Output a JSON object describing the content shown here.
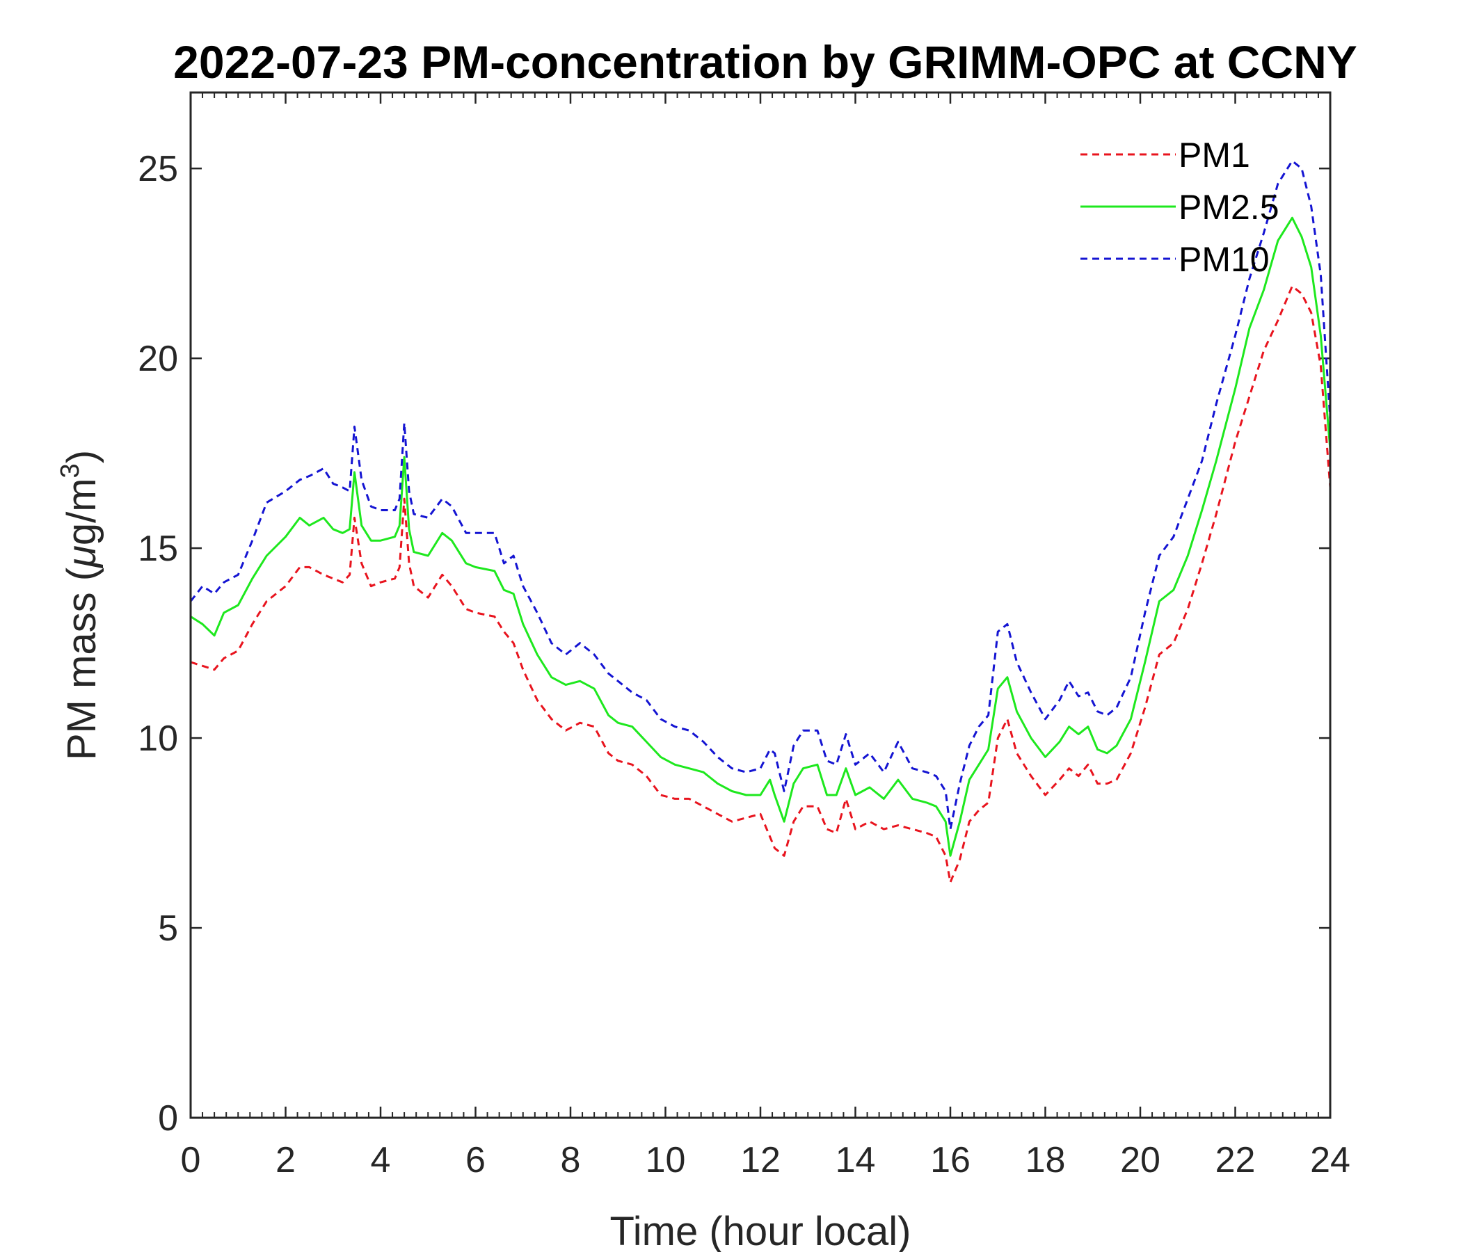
{
  "chart_data": {
    "type": "line",
    "title": "2022-07-23 PM-concentration by GRIMM-OPC at CCNY",
    "xlabel": "Time (hour local)",
    "ylabel_prefix": "PM mass (",
    "ylabel_mu": "μ",
    "ylabel_unit": "g/m",
    "ylabel_sup": "3",
    "ylabel_suffix": ")",
    "xlim": [
      0,
      24
    ],
    "ylim": [
      0,
      27
    ],
    "xticks": [
      "0",
      "2",
      "4",
      "6",
      "8",
      "10",
      "12",
      "14",
      "16",
      "18",
      "20",
      "22",
      "24"
    ],
    "yticks": [
      "0",
      "5",
      "10",
      "15",
      "20",
      "25"
    ],
    "legend_position": "top-right",
    "series": [
      {
        "name": "PM1",
        "color": "#e8141e",
        "style": "dashed",
        "x": [
          0,
          0.25,
          0.5,
          0.7,
          1.0,
          1.3,
          1.6,
          2.0,
          2.3,
          2.5,
          2.8,
          3.0,
          3.2,
          3.35,
          3.45,
          3.6,
          3.8,
          4.0,
          4.3,
          4.4,
          4.5,
          4.6,
          4.7,
          5.0,
          5.3,
          5.5,
          5.8,
          6.0,
          6.4,
          6.6,
          6.8,
          7.0,
          7.3,
          7.6,
          7.9,
          8.2,
          8.5,
          8.8,
          9.0,
          9.3,
          9.6,
          9.9,
          10.2,
          10.5,
          10.8,
          11.1,
          11.4,
          11.7,
          12.0,
          12.2,
          12.3,
          12.5,
          12.7,
          12.9,
          13.2,
          13.4,
          13.6,
          13.8,
          14.0,
          14.3,
          14.6,
          14.9,
          15.2,
          15.5,
          15.7,
          15.9,
          16.0,
          16.2,
          16.4,
          16.6,
          16.8,
          17.0,
          17.2,
          17.4,
          17.7,
          18.0,
          18.3,
          18.5,
          18.7,
          18.9,
          19.1,
          19.3,
          19.5,
          19.8,
          20.1,
          20.4,
          20.7,
          21.0,
          21.3,
          21.6,
          22.0,
          22.3,
          22.6,
          22.9,
          23.2,
          23.4,
          23.6,
          23.8,
          24.0
        ],
        "y": [
          12.0,
          11.9,
          11.8,
          12.1,
          12.3,
          13.0,
          13.6,
          14.0,
          14.5,
          14.5,
          14.3,
          14.2,
          14.1,
          14.3,
          15.8,
          14.6,
          14.0,
          14.1,
          14.2,
          14.5,
          16.3,
          14.6,
          14.0,
          13.7,
          14.3,
          14.0,
          13.4,
          13.3,
          13.2,
          12.8,
          12.5,
          11.8,
          11.0,
          10.5,
          10.2,
          10.4,
          10.3,
          9.6,
          9.4,
          9.3,
          9.0,
          8.5,
          8.4,
          8.4,
          8.2,
          8.0,
          7.8,
          7.9,
          8.0,
          7.4,
          7.1,
          6.9,
          7.8,
          8.2,
          8.2,
          7.6,
          7.5,
          8.4,
          7.6,
          7.8,
          7.6,
          7.7,
          7.6,
          7.5,
          7.4,
          6.9,
          6.2,
          6.8,
          7.8,
          8.1,
          8.3,
          10.0,
          10.5,
          9.6,
          9.0,
          8.5,
          8.9,
          9.2,
          9.0,
          9.3,
          8.8,
          8.8,
          8.9,
          9.6,
          10.8,
          12.2,
          12.5,
          13.4,
          14.6,
          15.9,
          17.8,
          19.0,
          20.2,
          21.0,
          21.9,
          21.7,
          21.2,
          19.8,
          16.6
        ]
      },
      {
        "name": "PM2.5",
        "color": "#1ee81e",
        "style": "solid",
        "x": [
          0,
          0.25,
          0.5,
          0.7,
          1.0,
          1.3,
          1.6,
          2.0,
          2.3,
          2.5,
          2.8,
          3.0,
          3.2,
          3.35,
          3.45,
          3.6,
          3.8,
          4.0,
          4.3,
          4.4,
          4.5,
          4.6,
          4.7,
          5.0,
          5.3,
          5.5,
          5.8,
          6.0,
          6.4,
          6.6,
          6.8,
          7.0,
          7.3,
          7.6,
          7.9,
          8.2,
          8.5,
          8.8,
          9.0,
          9.3,
          9.6,
          9.9,
          10.2,
          10.5,
          10.8,
          11.1,
          11.4,
          11.7,
          12.0,
          12.2,
          12.3,
          12.5,
          12.7,
          12.9,
          13.2,
          13.4,
          13.6,
          13.8,
          14.0,
          14.3,
          14.6,
          14.9,
          15.2,
          15.5,
          15.7,
          15.9,
          16.0,
          16.2,
          16.4,
          16.6,
          16.8,
          17.0,
          17.2,
          17.4,
          17.7,
          18.0,
          18.3,
          18.5,
          18.7,
          18.9,
          19.1,
          19.3,
          19.5,
          19.8,
          20.1,
          20.4,
          20.7,
          21.0,
          21.3,
          21.6,
          22.0,
          22.3,
          22.6,
          22.9,
          23.2,
          23.4,
          23.6,
          23.8,
          24.0
        ],
        "y": [
          13.2,
          13.0,
          12.7,
          13.3,
          13.5,
          14.2,
          14.8,
          15.3,
          15.8,
          15.6,
          15.8,
          15.5,
          15.4,
          15.5,
          17.0,
          15.6,
          15.2,
          15.2,
          15.3,
          15.6,
          17.4,
          15.5,
          14.9,
          14.8,
          15.4,
          15.2,
          14.6,
          14.5,
          14.4,
          13.9,
          13.8,
          13.0,
          12.2,
          11.6,
          11.4,
          11.5,
          11.3,
          10.6,
          10.4,
          10.3,
          9.9,
          9.5,
          9.3,
          9.2,
          9.1,
          8.8,
          8.6,
          8.5,
          8.5,
          8.9,
          8.5,
          7.8,
          8.8,
          9.2,
          9.3,
          8.5,
          8.5,
          9.2,
          8.5,
          8.7,
          8.4,
          8.9,
          8.4,
          8.3,
          8.2,
          7.8,
          6.9,
          7.8,
          8.9,
          9.3,
          9.7,
          11.3,
          11.6,
          10.7,
          10.0,
          9.5,
          9.9,
          10.3,
          10.1,
          10.3,
          9.7,
          9.6,
          9.8,
          10.5,
          12.0,
          13.6,
          13.9,
          14.8,
          16.0,
          17.3,
          19.2,
          20.8,
          21.8,
          23.1,
          23.7,
          23.2,
          22.4,
          20.6,
          17.6
        ]
      },
      {
        "name": "PM10",
        "color": "#1414d2",
        "style": "dashed",
        "x": [
          0,
          0.25,
          0.5,
          0.7,
          1.0,
          1.3,
          1.6,
          2.0,
          2.3,
          2.5,
          2.8,
          3.0,
          3.2,
          3.35,
          3.45,
          3.6,
          3.8,
          4.0,
          4.3,
          4.4,
          4.5,
          4.6,
          4.7,
          5.0,
          5.3,
          5.5,
          5.8,
          6.0,
          6.4,
          6.6,
          6.8,
          7.0,
          7.3,
          7.6,
          7.9,
          8.2,
          8.5,
          8.8,
          9.0,
          9.3,
          9.6,
          9.9,
          10.2,
          10.5,
          10.8,
          11.1,
          11.4,
          11.7,
          12.0,
          12.2,
          12.3,
          12.5,
          12.7,
          12.9,
          13.2,
          13.4,
          13.6,
          13.8,
          14.0,
          14.3,
          14.6,
          14.9,
          15.2,
          15.5,
          15.7,
          15.9,
          16.0,
          16.2,
          16.4,
          16.6,
          16.8,
          17.0,
          17.2,
          17.4,
          17.7,
          18.0,
          18.3,
          18.5,
          18.7,
          18.9,
          19.1,
          19.3,
          19.5,
          19.8,
          20.1,
          20.4,
          20.7,
          21.0,
          21.3,
          21.6,
          22.0,
          22.3,
          22.6,
          22.9,
          23.2,
          23.4,
          23.6,
          23.8,
          24.0
        ],
        "y": [
          13.6,
          14.0,
          13.8,
          14.1,
          14.3,
          15.2,
          16.2,
          16.5,
          16.8,
          16.9,
          17.1,
          16.7,
          16.6,
          16.5,
          18.2,
          16.8,
          16.1,
          16.0,
          16.0,
          16.3,
          18.3,
          16.5,
          15.9,
          15.8,
          16.3,
          16.1,
          15.4,
          15.4,
          15.4,
          14.6,
          14.8,
          14.0,
          13.3,
          12.5,
          12.2,
          12.5,
          12.2,
          11.7,
          11.5,
          11.2,
          11.0,
          10.5,
          10.3,
          10.2,
          9.9,
          9.5,
          9.2,
          9.1,
          9.2,
          9.7,
          9.6,
          8.6,
          9.8,
          10.2,
          10.2,
          9.4,
          9.3,
          10.1,
          9.3,
          9.6,
          9.1,
          9.9,
          9.2,
          9.1,
          9.0,
          8.6,
          7.6,
          8.8,
          9.8,
          10.3,
          10.6,
          12.8,
          13.0,
          12.0,
          11.2,
          10.5,
          11.0,
          11.5,
          11.1,
          11.2,
          10.7,
          10.6,
          10.8,
          11.6,
          13.3,
          14.8,
          15.3,
          16.3,
          17.3,
          18.8,
          20.6,
          22.1,
          23.3,
          24.6,
          25.2,
          25.0,
          24.0,
          22.2,
          18.4
        ]
      }
    ]
  }
}
